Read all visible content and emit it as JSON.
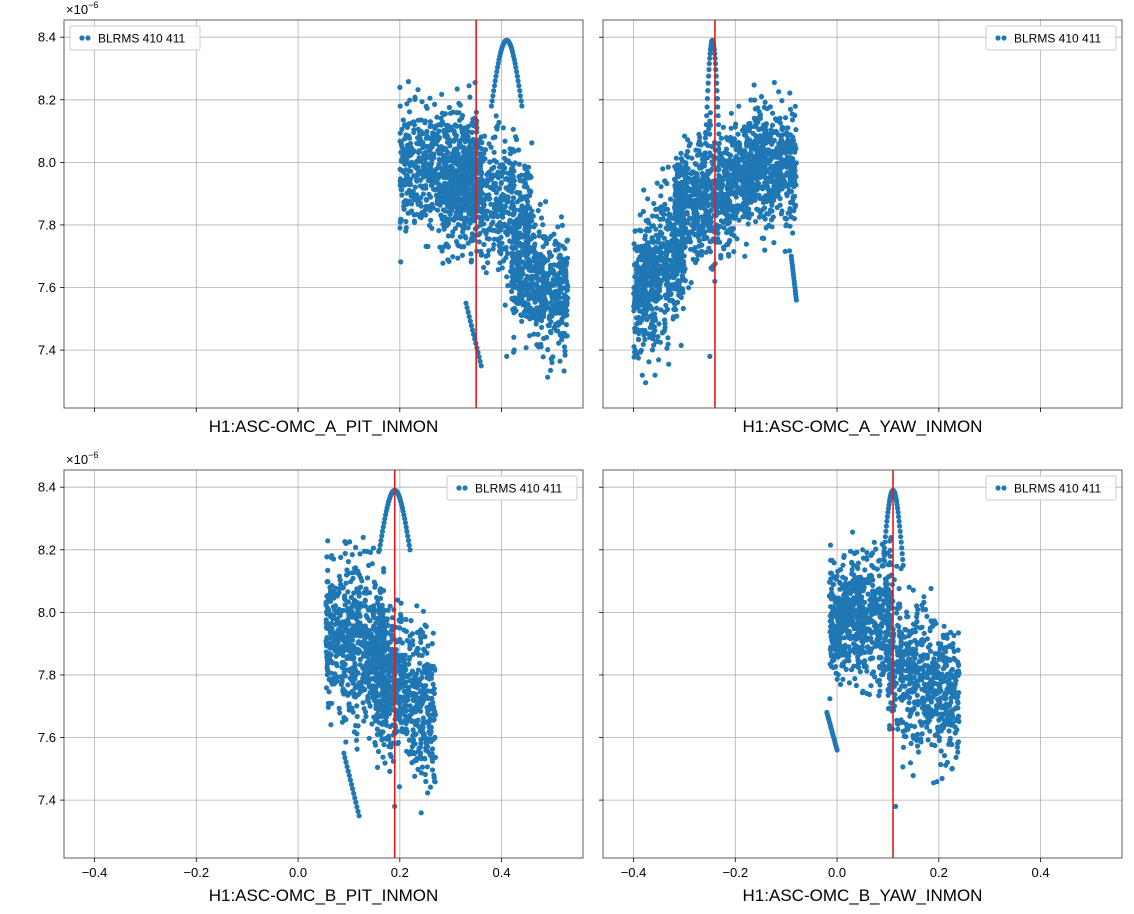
{
  "figure": {
    "grid": true,
    "colors": {
      "scatter": "#1f77b4",
      "marker_line": "#e31a1c",
      "grid": "#b0b0b0",
      "axes": "#4d4d4d"
    }
  },
  "chart_data": [
    {
      "type": "scatter",
      "xlabel": "H1:ASC-OMC_A_PIT_INMON",
      "ylabel": "",
      "y_offset_label": "×10",
      "y_offset_exponent": "−6",
      "xlim": [
        -0.46,
        0.56
      ],
      "ylim": [
        7.215,
        8.455
      ],
      "x_ticks": [
        -0.4,
        -0.2,
        0.0,
        0.2,
        0.4
      ],
      "x_tick_labels_shown": false,
      "y_ticks": [
        7.4,
        7.6,
        7.8,
        8.0,
        8.2,
        8.4
      ],
      "y_tick_labels": [
        "7.4",
        "7.6",
        "7.8",
        "8.0",
        "8.2",
        "8.4"
      ],
      "legend": {
        "label": "BLRMS 410 411",
        "loc": "upper-left"
      },
      "vline_x": 0.35,
      "series": [
        {
          "name": "BLRMS 410 411",
          "clouds": [
            {
              "x_range": [
                0.2,
                0.36
              ],
              "y_center": 7.97,
              "y_spread": 0.18,
              "slope": 0.0,
              "density": 1.0
            },
            {
              "x_range": [
                0.28,
                0.46
              ],
              "y_center": 7.88,
              "y_spread": 0.2,
              "slope": -0.6,
              "density": 0.9
            },
            {
              "x_range": [
                0.42,
                0.53
              ],
              "y_center": 7.62,
              "y_spread": 0.18,
              "slope": -1.2,
              "density": 0.85
            }
          ],
          "arc": {
            "x_start": 0.38,
            "x_peak": 0.41,
            "x_end": 0.44,
            "y_base": 8.18,
            "y_peak": 8.39
          },
          "tail": {
            "x_start": 0.33,
            "x_end": 0.36,
            "y_start": 7.55,
            "y_end": 7.35
          },
          "outliers": [
            {
              "x": 0.41,
              "y": 7.38
            }
          ]
        }
      ]
    },
    {
      "type": "scatter",
      "xlabel": "H1:ASC-OMC_A_YAW_INMON",
      "ylabel": "",
      "y_offset_label": "",
      "y_offset_exponent": "",
      "xlim": [
        -0.46,
        0.56
      ],
      "ylim": [
        7.215,
        8.455
      ],
      "x_ticks": [
        -0.4,
        -0.2,
        0.0,
        0.2,
        0.4
      ],
      "x_tick_labels_shown": false,
      "y_ticks": [
        7.4,
        7.6,
        7.8,
        8.0,
        8.2,
        8.4
      ],
      "y_tick_labels": [],
      "legend": {
        "label": "BLRMS 410 411",
        "loc": "upper-right"
      },
      "vline_x": -0.24,
      "series": [
        {
          "name": "BLRMS 410 411",
          "clouds": [
            {
              "x_range": [
                -0.4,
                -0.3
              ],
              "y_center": 7.65,
              "y_spread": 0.2,
              "slope": 1.3,
              "density": 0.9
            },
            {
              "x_range": [
                -0.32,
                -0.2
              ],
              "y_center": 7.88,
              "y_spread": 0.17,
              "slope": 0.6,
              "density": 1.0
            },
            {
              "x_range": [
                -0.2,
                -0.08
              ],
              "y_center": 7.98,
              "y_spread": 0.17,
              "slope": 0.2,
              "density": 1.0
            }
          ],
          "arc": {
            "x_start": -0.26,
            "x_peak": -0.245,
            "x_end": -0.23,
            "y_base": 8.0,
            "y_peak": 8.39
          },
          "tail": {
            "x_start": -0.09,
            "x_end": -0.08,
            "y_start": 7.7,
            "y_end": 7.56
          },
          "outliers": [
            {
              "x": -0.25,
              "y": 7.38
            }
          ]
        }
      ]
    },
    {
      "type": "scatter",
      "xlabel": "H1:ASC-OMC_B_PIT_INMON",
      "ylabel": "",
      "y_offset_label": "×10",
      "y_offset_exponent": "−6",
      "xlim": [
        -0.46,
        0.56
      ],
      "ylim": [
        7.215,
        8.455
      ],
      "x_ticks": [
        -0.4,
        -0.2,
        0.0,
        0.2,
        0.4
      ],
      "x_tick_labels": [
        "−0.4",
        "−0.2",
        "0.0",
        "0.2",
        "0.4"
      ],
      "x_tick_labels_shown": true,
      "y_ticks": [
        7.4,
        7.6,
        7.8,
        8.0,
        8.2,
        8.4
      ],
      "y_tick_labels": [
        "7.4",
        "7.6",
        "7.8",
        "8.0",
        "8.2",
        "8.4"
      ],
      "legend": {
        "label": "BLRMS 410 411",
        "loc": "upper-right"
      },
      "vline_x": 0.19,
      "series": [
        {
          "name": "BLRMS 410 411",
          "clouds": [
            {
              "x_range": [
                0.055,
                0.17
              ],
              "y_center": 7.9,
              "y_spread": 0.22,
              "slope": -0.8,
              "density": 1.0
            },
            {
              "x_range": [
                0.15,
                0.27
              ],
              "y_center": 7.75,
              "y_spread": 0.22,
              "slope": -1.2,
              "density": 0.9
            }
          ],
          "arc": {
            "x_start": 0.16,
            "x_peak": 0.19,
            "x_end": 0.22,
            "y_base": 8.2,
            "y_peak": 8.39
          },
          "tail": {
            "x_start": 0.09,
            "x_end": 0.12,
            "y_start": 7.55,
            "y_end": 7.35
          },
          "outliers": [
            {
              "x": 0.19,
              "y": 7.38
            }
          ]
        }
      ]
    },
    {
      "type": "scatter",
      "xlabel": "H1:ASC-OMC_B_YAW_INMON",
      "ylabel": "",
      "y_offset_label": "",
      "y_offset_exponent": "",
      "xlim": [
        -0.46,
        0.56
      ],
      "ylim": [
        7.215,
        8.455
      ],
      "x_ticks": [
        -0.4,
        -0.2,
        0.0,
        0.2,
        0.4
      ],
      "x_tick_labels": [
        "−0.4",
        "−0.2",
        "0.0",
        "0.2",
        "0.4"
      ],
      "x_tick_labels_shown": true,
      "y_ticks": [
        7.4,
        7.6,
        7.8,
        8.0,
        8.2,
        8.4
      ],
      "y_tick_labels": [],
      "legend": {
        "label": "BLRMS 410 411",
        "loc": "upper-right"
      },
      "vline_x": 0.11,
      "series": [
        {
          "name": "BLRMS 410 411",
          "clouds": [
            {
              "x_range": [
                -0.015,
                0.11
              ],
              "y_center": 7.98,
              "y_spread": 0.18,
              "slope": 0.0,
              "density": 1.0
            },
            {
              "x_range": [
                0.1,
                0.24
              ],
              "y_center": 7.78,
              "y_spread": 0.2,
              "slope": -0.9,
              "density": 0.9
            }
          ],
          "arc": {
            "x_start": 0.09,
            "x_peak": 0.11,
            "x_end": 0.13,
            "y_base": 8.15,
            "y_peak": 8.39
          },
          "tail": {
            "x_start": -0.02,
            "x_end": 0.0,
            "y_start": 7.68,
            "y_end": 7.56
          },
          "outliers": [
            {
              "x": 0.115,
              "y": 7.38
            }
          ]
        }
      ]
    }
  ]
}
